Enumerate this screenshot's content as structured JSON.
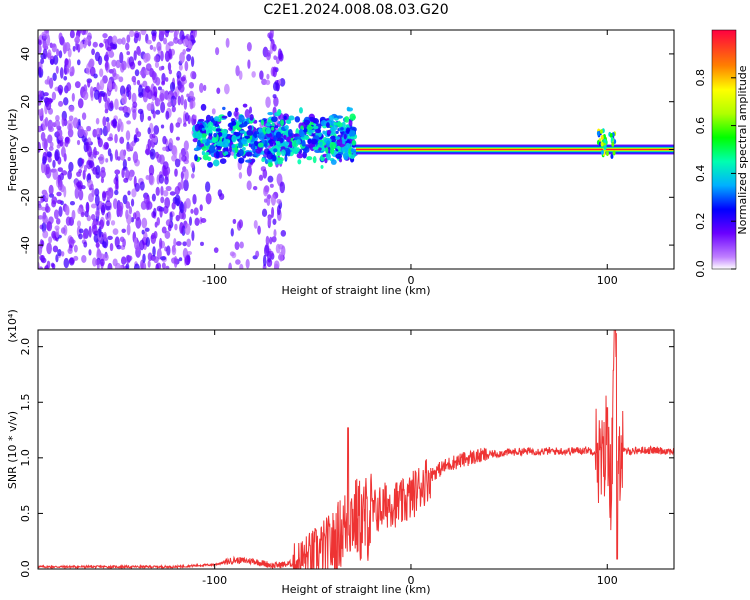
{
  "title": "C2E1.2024.008.08.03.G20",
  "chart_data": [
    {
      "type": "heatmap",
      "xlabel": "Height of straight line (km)",
      "ylabel": "Frequency (Hz)",
      "xlim": [
        -190,
        134
      ],
      "ylim": [
        -50,
        50
      ],
      "xticks": [
        -100,
        0,
        100
      ],
      "xtick_labels": [
        "-100",
        "0",
        "100"
      ],
      "yticks": [
        -40,
        -20,
        0,
        20,
        40
      ],
      "ytick_labels": [
        "-40",
        "-20",
        "0",
        "20",
        "40"
      ],
      "colorbar": {
        "label": "Normalized spectral amplitude",
        "range": [
          0,
          1
        ],
        "ticks": [
          0,
          0.2,
          0.4,
          0.6,
          0.8
        ],
        "tick_labels": [
          "0.0",
          "0.2",
          "0.4",
          "0.6",
          "0.8"
        ],
        "colormap": "rainbow"
      },
      "grid": false,
      "features": [
        {
          "name": "scattered-noise",
          "x_range": [
            -190,
            -65
          ],
          "y_range": [
            -50,
            50
          ],
          "amplitude": 0.1
        },
        {
          "name": "noisy-cluster",
          "x_range": [
            -110,
            -28
          ],
          "y_range": [
            -10,
            20
          ],
          "amplitude": 0.35
        },
        {
          "name": "carrier-line",
          "x_range": [
            -28,
            134
          ],
          "frequency": 0,
          "amplitude": 1.0
        },
        {
          "name": "disturbance",
          "x_range": [
            95,
            104
          ],
          "y_range": [
            -3,
            8
          ],
          "amplitude": 0.6
        }
      ]
    },
    {
      "type": "line",
      "xlabel": "Height of straight line (km)",
      "ylabel": "SNR (10 * v/v)",
      "y_multiplier_label": "(x10⁴)",
      "xlim": [
        -190,
        134
      ],
      "ylim": [
        0,
        2.15
      ],
      "xticks": [
        -100,
        0,
        100
      ],
      "xtick_labels": [
        "-100",
        "0",
        "100"
      ],
      "yticks": [
        0,
        0.5,
        1.0,
        1.5,
        2.0
      ],
      "ytick_labels": [
        "0.0",
        "0.5",
        "1.0",
        "1.5",
        "2.0"
      ],
      "grid": false,
      "color": "#ee3333",
      "series": [
        {
          "x": [
            -190,
            -150,
            -120,
            -100,
            -90,
            -80,
            -70,
            -60,
            -50,
            -40,
            -35,
            -30,
            -25,
            -20,
            -15,
            -10,
            -5,
            0,
            5,
            10,
            20,
            30,
            40,
            50,
            60,
            70,
            80,
            90,
            95,
            98,
            100,
            102,
            104,
            106,
            110,
            120,
            134
          ],
          "y": [
            0.02,
            0.02,
            0.02,
            0.04,
            0.08,
            0.07,
            0.03,
            0.05,
            0.12,
            0.22,
            0.35,
            0.48,
            0.42,
            0.5,
            0.55,
            0.6,
            0.58,
            0.65,
            0.75,
            0.85,
            0.95,
            1.0,
            1.03,
            1.05,
            1.06,
            1.06,
            1.06,
            1.07,
            1.05,
            0.9,
            1.3,
            0.7,
            2.1,
            1.05,
            1.06,
            1.07,
            1.06
          ]
        }
      ],
      "annotations": [
        {
          "x": -32,
          "y": 1.27,
          "label": ""
        },
        {
          "x": 104,
          "y": 2.15,
          "label": ""
        }
      ]
    }
  ]
}
